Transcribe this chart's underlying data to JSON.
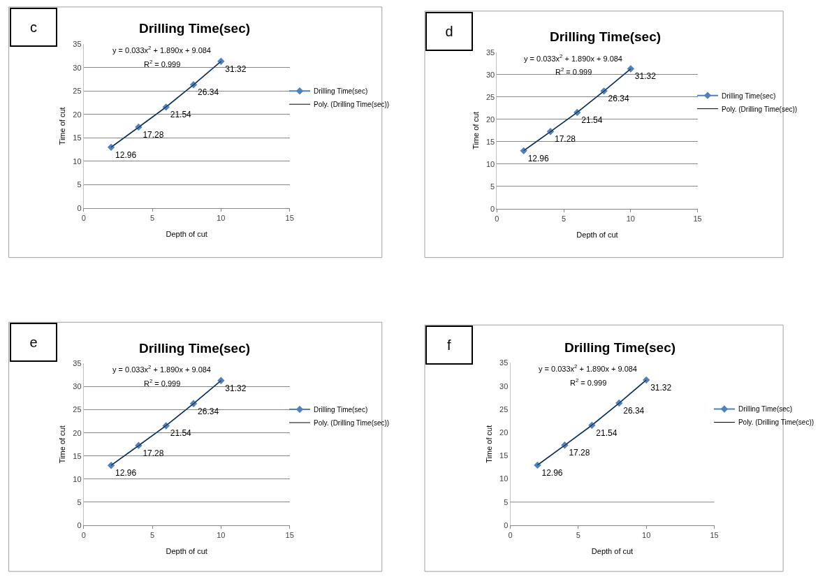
{
  "chart_data": [
    {
      "type": "line",
      "title": "Drilling Time(sec)",
      "xlabel": "Depth of cut",
      "ylabel": "Time of cut",
      "annotations": [
        "c",
        "y = 0.033x$^{2}$ + 1.890x + 9.084",
        "R$^{2}$ = 0.999"
      ],
      "x": [
        2,
        4,
        6,
        8,
        10
      ],
      "xlim": [
        0,
        15
      ],
      "xticks": [
        0,
        5,
        10,
        15
      ],
      "ylim": [
        0,
        35
      ],
      "yticks": [
        0,
        5,
        10,
        15,
        20,
        25,
        30,
        35
      ],
      "grid": "y",
      "legend": "right",
      "series": [
        {
          "name": "Drilling Time(sec)",
          "color": "#4f81bd",
          "marker": "diamond",
          "values": [
            12.96,
            17.28,
            21.54,
            26.34,
            31.32
          ],
          "value_labels": [
            "12.96",
            "17.28",
            "21.54",
            "26.34",
            "31.32"
          ]
        },
        {
          "name": "Poly. (Drilling Time(sec))",
          "color": "#000000",
          "marker": "none",
          "x": [
            2,
            4,
            6,
            8,
            10
          ],
          "values": [
            13.0,
            17.2,
            21.6,
            26.3,
            31.3
          ]
        }
      ]
    },
    {
      "type": "line",
      "title": "Drilling Time(sec)",
      "xlabel": "Depth of cut",
      "ylabel": "Time of cut",
      "annotations": [
        "d",
        "y = 0.033x$^{2}$ + 1.890x + 9.084",
        "R$^{2}$ = 0.999"
      ],
      "x": [
        2,
        4,
        6,
        8,
        10
      ],
      "xlim": [
        0,
        15
      ],
      "xticks": [
        0,
        5,
        10,
        15
      ],
      "ylim": [
        0,
        35
      ],
      "yticks": [
        0,
        5,
        10,
        15,
        20,
        25,
        30,
        35
      ],
      "grid": "y",
      "legend": "right",
      "series": [
        {
          "name": "Drilling Time(sec)",
          "color": "#4f81bd",
          "marker": "diamond",
          "values": [
            12.96,
            17.28,
            21.54,
            26.34,
            31.32
          ],
          "value_labels": [
            "12.96",
            "17.28",
            "21.54",
            "26.34",
            "31.32"
          ]
        },
        {
          "name": "Poly. (Drilling Time(sec))",
          "color": "#000000",
          "marker": "none",
          "x": [
            2,
            4,
            6,
            8,
            10
          ],
          "values": [
            13.0,
            17.2,
            21.6,
            26.3,
            31.3
          ]
        }
      ]
    },
    {
      "type": "line",
      "title": "Drilling Time(sec)",
      "xlabel": "Depth of cut",
      "ylabel": "Time of cut",
      "annotations": [
        "e",
        "y = 0.033x$^{2}$ + 1.890x + 9.084",
        "R$^{2}$ = 0.999"
      ],
      "x": [
        2,
        4,
        6,
        8,
        10
      ],
      "xlim": [
        0,
        15
      ],
      "xticks": [
        0,
        5,
        10,
        15
      ],
      "ylim": [
        0,
        35
      ],
      "yticks": [
        0,
        5,
        10,
        15,
        20,
        25,
        30,
        35
      ],
      "grid": "y",
      "legend": "right",
      "series": [
        {
          "name": "Drilling Time(sec)",
          "color": "#4f81bd",
          "marker": "diamond",
          "values": [
            12.96,
            17.28,
            21.54,
            26.34,
            31.32
          ],
          "value_labels": [
            "12.96",
            "17.28",
            "21.54",
            "26.34",
            "31.32"
          ]
        },
        {
          "name": "Poly. (Drilling Time(sec))",
          "color": "#000000",
          "marker": "none",
          "x": [
            2,
            4,
            6,
            8,
            10
          ],
          "values": [
            13.0,
            17.2,
            21.6,
            26.3,
            31.3
          ]
        }
      ]
    },
    {
      "type": "line",
      "title": "Drilling Time(sec)",
      "xlabel": "Depth of cut",
      "ylabel": "Time of cut",
      "annotations": [
        "f",
        "y = 0.033x$^{2}$ + 1.890x + 9.084",
        "R$^{2}$ = 0.999"
      ],
      "x": [
        2,
        4,
        6,
        8,
        10
      ],
      "xlim": [
        0,
        15
      ],
      "xticks": [
        0,
        5,
        10,
        15
      ],
      "ylim": [
        0,
        35
      ],
      "yticks": [
        0,
        5,
        10,
        15,
        20,
        25,
        30,
        35
      ],
      "legend": "right",
      "ref_lines": [
        {
          "axis": "y",
          "value": 5,
          "color": "#868686"
        }
      ],
      "series": [
        {
          "name": "Drilling Time(sec)",
          "color": "#4f81bd",
          "marker": "diamond",
          "values": [
            12.96,
            17.28,
            21.54,
            26.34,
            31.32
          ],
          "value_labels": [
            "12.96",
            "17.28",
            "21.54",
            "26.34",
            "31.32"
          ]
        },
        {
          "name": "Poly. (Drilling Time(sec))",
          "color": "#000000",
          "marker": "none",
          "x": [
            2,
            4,
            6,
            8,
            10
          ],
          "values": [
            13.0,
            17.2,
            21.6,
            26.3,
            31.3
          ]
        }
      ]
    }
  ]
}
